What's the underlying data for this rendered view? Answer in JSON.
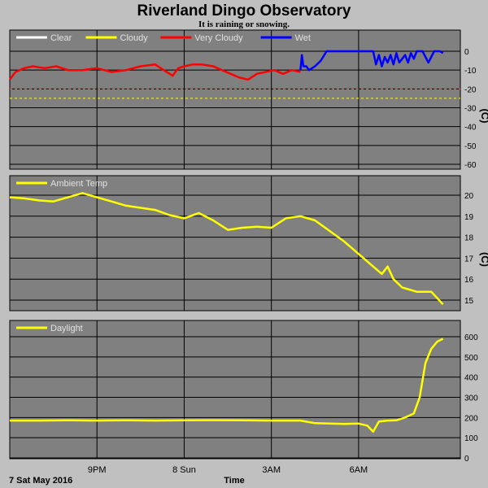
{
  "header": {
    "title": "Riverland Dingo Observatory",
    "subtitle": "It is raining or snowing."
  },
  "footer": {
    "date_label": "7 Sat May 2016",
    "time_label": "Time"
  },
  "colors": {
    "page_bg": "#c0c0c0",
    "plot_bg": "#808080",
    "grid": "#000000",
    "clear": "#ffffff",
    "cloudy": "#ffff00",
    "very_cloudy": "#ff0000",
    "wet": "#0000ff",
    "ambient": "#ffff00",
    "daylight": "#ffff00",
    "dash_red": "#ff5050",
    "dash_yellow": "#ffff00"
  },
  "chart_data": [
    {
      "type": "line",
      "ylabel": "(C)",
      "ylim": [
        -60,
        0
      ],
      "yticks": [
        "0",
        "-10",
        "-20",
        "-30",
        "-40",
        "-50",
        "-60"
      ],
      "legend": [
        "Clear",
        "Cloudy",
        "Very Cloudy",
        "Wet"
      ],
      "xticks": [
        "9PM",
        "8 Sun",
        "3AM",
        "6AM"
      ],
      "thresholds": [
        -20,
        -25
      ],
      "series": [
        {
          "name": "Very Cloudy",
          "x": [
            18.0,
            18.2,
            18.5,
            18.8,
            19.2,
            19.6,
            20.0,
            20.5,
            21.0,
            21.5,
            22.0,
            22.5,
            23.0,
            23.3,
            23.6,
            23.8,
            24.0,
            24.3,
            24.6,
            25.0,
            25.3,
            25.6,
            25.9,
            26.2,
            26.5,
            26.8,
            27.1,
            27.4,
            27.7,
            28.0
          ],
          "values": [
            -15,
            -11,
            -9,
            -8,
            -9,
            -8,
            -10,
            -10,
            -9,
            -11,
            -10,
            -8,
            -7,
            -10,
            -13,
            -9,
            -8,
            -7,
            -7,
            -8,
            -10,
            -12,
            -14,
            -15,
            -12,
            -11,
            -10,
            -12,
            -10,
            -11
          ]
        },
        {
          "name": "Wet",
          "x": [
            28.0,
            28.05,
            28.1,
            28.2,
            28.3,
            28.4,
            28.5,
            28.7,
            28.9,
            29.2,
            29.5,
            29.8,
            30.1,
            30.5,
            30.6,
            30.7,
            30.8,
            30.9,
            31.0,
            31.1,
            31.2,
            31.3,
            31.4,
            31.5,
            31.6,
            31.7,
            31.8,
            31.9,
            32.0,
            32.2,
            32.4,
            32.6,
            32.8,
            32.9
          ],
          "values": [
            -10,
            -2,
            -8,
            -8,
            -10,
            -9,
            -8,
            -5,
            0,
            0,
            0,
            0,
            0,
            0,
            -7,
            -2,
            -8,
            -3,
            -6,
            -2,
            -7,
            -1,
            -6,
            -4,
            -2,
            -6,
            -1,
            -4,
            0,
            0,
            -6,
            0,
            0,
            -1
          ]
        }
      ]
    },
    {
      "type": "line",
      "ylabel": "(C)",
      "ylim": [
        14.6,
        20.5
      ],
      "yticks": [
        "20",
        "19",
        "18",
        "17",
        "16",
        "15"
      ],
      "legend": [
        "Ambient Temp"
      ],
      "xticks": [
        "9PM",
        "8 Sun",
        "3AM",
        "6AM"
      ],
      "series": [
        {
          "name": "Ambient Temp",
          "x": [
            18.0,
            18.5,
            19.0,
            19.5,
            20.0,
            20.5,
            21.0,
            21.5,
            22.0,
            22.5,
            23.0,
            23.5,
            24.0,
            24.5,
            25.0,
            25.5,
            26.0,
            26.5,
            27.0,
            27.5,
            28.0,
            28.5,
            29.0,
            29.5,
            30.0,
            30.5,
            30.8,
            31.0,
            31.2,
            31.5,
            32.0,
            32.5,
            32.9
          ],
          "values": [
            19.9,
            19.85,
            19.75,
            19.7,
            19.9,
            20.1,
            19.9,
            19.7,
            19.5,
            19.4,
            19.3,
            19.05,
            18.9,
            19.15,
            18.8,
            18.35,
            18.45,
            18.5,
            18.45,
            18.9,
            19.0,
            18.8,
            18.3,
            17.8,
            17.2,
            16.6,
            16.25,
            16.6,
            16.0,
            15.6,
            15.4,
            15.4,
            14.8
          ]
        }
      ]
    },
    {
      "type": "line",
      "ylabel": "",
      "ylim": [
        0,
        650
      ],
      "yticks": [
        "600",
        "500",
        "400",
        "300",
        "200",
        "100",
        "0"
      ],
      "legend": [
        "Daylight"
      ],
      "xticks": [
        "9PM",
        "8 Sun",
        "3AM",
        "6AM"
      ],
      "series": [
        {
          "name": "Daylight",
          "x": [
            18.0,
            19.0,
            20.0,
            21.0,
            22.0,
            23.0,
            24.0,
            25.0,
            26.0,
            27.0,
            28.0,
            28.5,
            29.0,
            29.5,
            30.0,
            30.3,
            30.5,
            30.7,
            31.0,
            31.3,
            31.6,
            31.9,
            32.1,
            32.3,
            32.5,
            32.7,
            32.9
          ],
          "values": [
            185,
            185,
            186,
            185,
            186,
            185,
            186,
            187,
            186,
            185,
            185,
            172,
            170,
            168,
            170,
            160,
            130,
            180,
            185,
            186,
            200,
            220,
            300,
            470,
            540,
            575,
            590
          ]
        }
      ]
    }
  ]
}
